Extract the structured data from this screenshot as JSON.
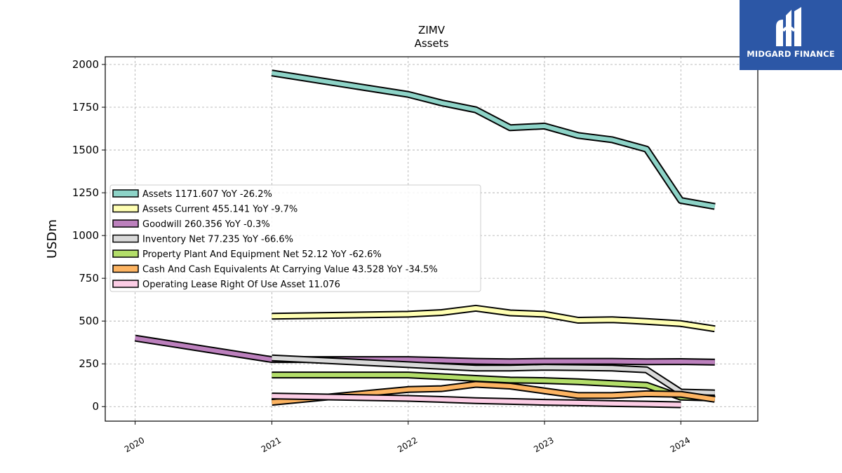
{
  "chart_data": {
    "type": "line",
    "title": "ZIMV",
    "subtitle": "Assets",
    "ylabel": "USDm",
    "xlabel": "",
    "xlim": [
      "2019-10-13",
      "2024-07-25"
    ],
    "ylim": [
      -85,
      2045
    ],
    "x_ticks": [
      "2020-01-01",
      "2021-01-01",
      "2022-01-01",
      "2023-01-01",
      "2024-01-01"
    ],
    "x_tick_labels": [
      "2020",
      "2021",
      "2022",
      "2023",
      "2024"
    ],
    "y_ticks": [
      0,
      250,
      500,
      750,
      1000,
      1250,
      1500,
      1750,
      2000
    ],
    "y_tick_labels": [
      "0",
      "250",
      "500",
      "750",
      "1000",
      "1250",
      "1500",
      "1750",
      "2000"
    ],
    "grid": true,
    "legend_position": "center-left",
    "series": [
      {
        "name": "Assets",
        "legend_label": "Assets  1171.607 YoY -26.2%",
        "color": "#8dd3c7",
        "x": [
          "2021-01-01",
          "2022-01-01",
          "2022-04-01",
          "2022-07-01",
          "2022-10-01",
          "2023-01-01",
          "2023-04-01",
          "2023-07-01",
          "2023-10-01",
          "2024-01-01",
          "2024-04-01"
        ],
        "values": [
          1950,
          1825,
          1775,
          1735,
          1630,
          1640,
          1585,
          1560,
          1505,
          1205,
          1170
        ]
      },
      {
        "name": "Assets Current",
        "legend_label": "Assets Current  455.141 YoY -9.7%",
        "color": "#ffffb3",
        "x": [
          "2021-01-01",
          "2022-01-01",
          "2022-04-01",
          "2022-07-01",
          "2022-10-01",
          "2023-01-01",
          "2023-04-01",
          "2023-07-01",
          "2023-10-01",
          "2024-01-01",
          "2024-04-01"
        ],
        "values": [
          528,
          540,
          550,
          575,
          548,
          540,
          505,
          508,
          498,
          485,
          455
        ]
      },
      {
        "name": "Goodwill",
        "legend_label": "Goodwill  260.356 YoY -0.3%",
        "color": "#bc80bd",
        "x": [
          "2020-01-01",
          "2021-01-01",
          "2022-01-01",
          "2022-04-01",
          "2022-07-01",
          "2022-10-01",
          "2023-01-01",
          "2023-04-01",
          "2023-07-01",
          "2023-10-01",
          "2024-01-01",
          "2024-04-01"
        ],
        "values": [
          400,
          275,
          275,
          270,
          265,
          262,
          265,
          265,
          265,
          262,
          263,
          260
        ]
      },
      {
        "name": "Inventory Net",
        "legend_label": "Inventory Net  77.235 YoY -66.6%",
        "color": "#d9d9d9",
        "x": [
          "2021-01-01",
          "2022-01-01",
          "2022-04-01",
          "2022-07-01",
          "2022-10-01",
          "2023-01-01",
          "2023-04-01",
          "2023-07-01",
          "2023-10-01",
          "2024-01-01",
          "2024-04-01"
        ],
        "values": [
          285,
          245,
          235,
          225,
          225,
          230,
          228,
          225,
          215,
          85,
          80
        ]
      },
      {
        "name": "Property Plant And Equipment Net",
        "legend_label": "Property Plant And Equipment Net  52.12 YoY -62.6%",
        "color": "#b3de69",
        "x": [
          "2021-01-01",
          "2022-01-01",
          "2022-04-01",
          "2022-07-01",
          "2022-10-01",
          "2023-01-01",
          "2023-04-01",
          "2023-07-01",
          "2023-10-01",
          "2024-01-01",
          "2024-04-01"
        ],
        "values": [
          185,
          185,
          175,
          165,
          155,
          152,
          145,
          135,
          125,
          55,
          50
        ]
      },
      {
        "name": "Cash And Cash Equivalents At Carrying Value",
        "legend_label": "Cash And Cash Equivalents At Carrying Value  43.528 YoY -34.5%",
        "color": "#fdb462",
        "x": [
          "2021-01-01",
          "2022-01-01",
          "2022-04-01",
          "2022-07-01",
          "2022-10-01",
          "2023-01-01",
          "2023-04-01",
          "2023-07-01",
          "2023-10-01",
          "2024-01-01",
          "2024-04-01"
        ],
        "values": [
          25,
          100,
          105,
          130,
          120,
          92,
          65,
          65,
          75,
          72,
          43
        ]
      },
      {
        "name": "Operating Lease Right Of Use Asset",
        "legend_label": "Operating Lease Right Of Use Asset  11.076",
        "color": "#fccde5",
        "x": [
          "2021-01-01",
          "2022-01-01",
          "2022-04-01",
          "2022-07-01",
          "2022-10-01",
          "2023-01-01",
          "2023-04-01",
          "2023-07-01",
          "2023-10-01",
          "2024-01-01"
        ],
        "values": [
          62,
          48,
          42,
          35,
          30,
          25,
          22,
          18,
          15,
          11
        ]
      }
    ]
  },
  "logo": {
    "text": "MIDGARD FINANCE",
    "color": "#2c57a6"
  }
}
